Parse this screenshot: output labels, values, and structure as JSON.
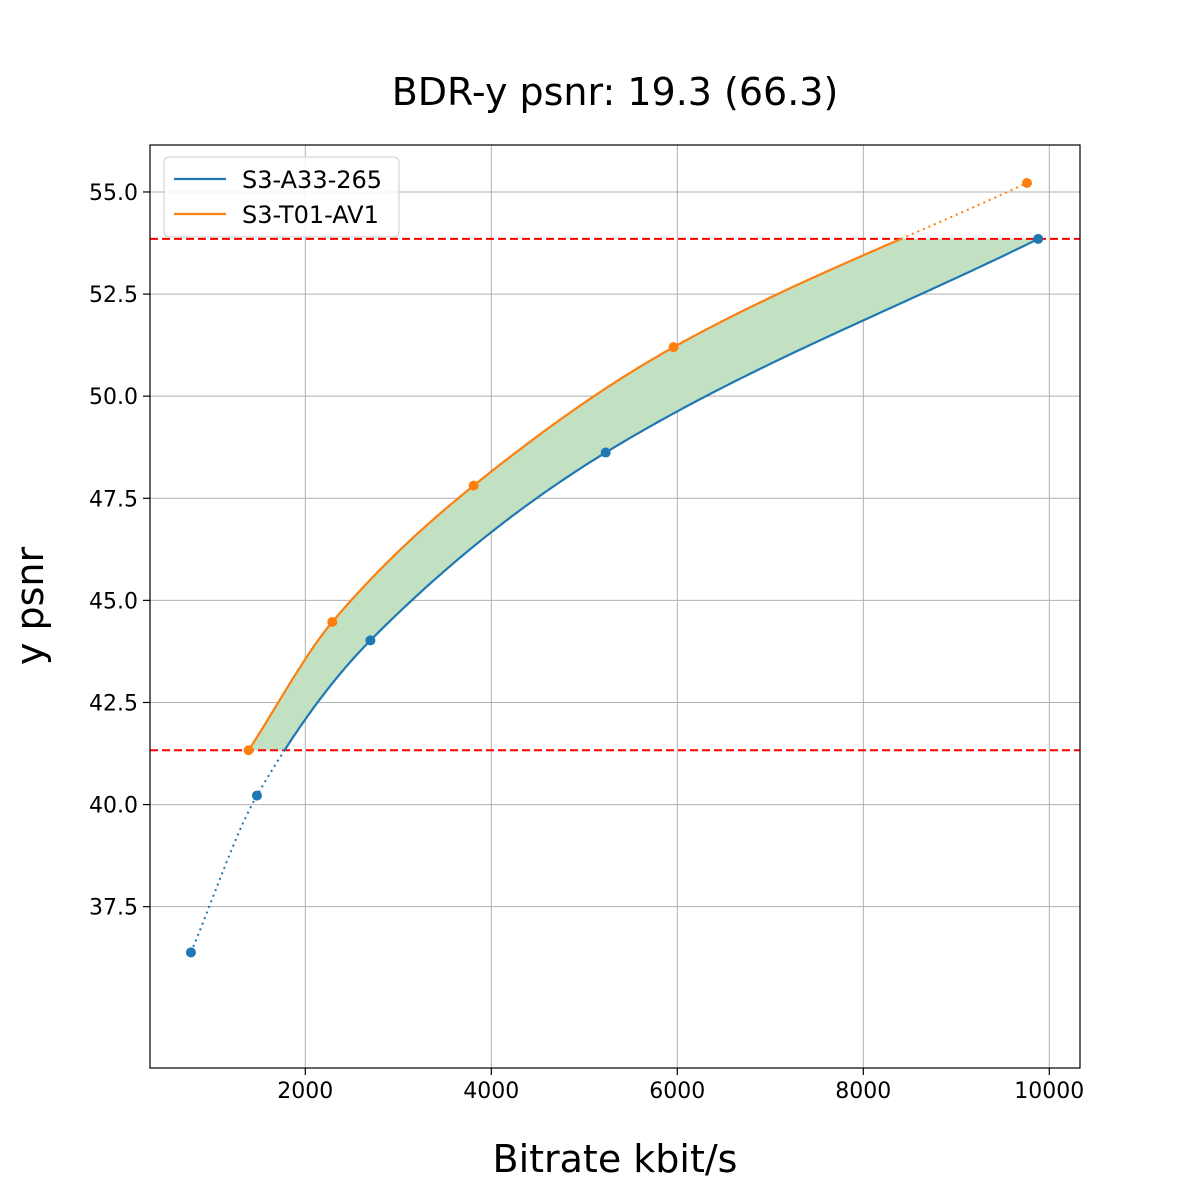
{
  "chart_data": {
    "type": "line",
    "title": "BDR-y psnr: 19.3 (66.3)",
    "xlabel": "Bitrate kbit/s",
    "ylabel": "y psnr",
    "xlim": [
      330,
      10330
    ],
    "ylim": [
      33.55,
      56.15
    ],
    "xticks": [
      2000,
      4000,
      6000,
      8000,
      10000
    ],
    "xtick_labels": [
      "2000",
      "4000",
      "6000",
      "8000",
      "10000"
    ],
    "yticks": [
      37.5,
      40.0,
      42.5,
      45.0,
      47.5,
      50.0,
      52.5,
      55.0
    ],
    "ytick_labels": [
      "37.5",
      "40.0",
      "42.5",
      "45.0",
      "47.5",
      "50.0",
      "52.5",
      "55.0"
    ],
    "grid": true,
    "legend_position": "top-left",
    "reference_lines_y": [
      41.33,
      53.85
    ],
    "reference_line_color": "#ff0000",
    "fill_color": "#c2e0c2",
    "series": [
      {
        "name": "S3-A33-265",
        "color": "#1f77b4",
        "x": [
          770,
          1480,
          2700,
          5230,
          9880
        ],
        "y": [
          36.38,
          40.22,
          44.02,
          48.62,
          53.85
        ]
      },
      {
        "name": "S3-T01-AV1",
        "color": "#ff7f0e",
        "x": [
          1390,
          2290,
          3810,
          5960,
          9760
        ],
        "y": [
          41.33,
          44.47,
          47.81,
          51.2,
          55.22
        ]
      }
    ]
  }
}
